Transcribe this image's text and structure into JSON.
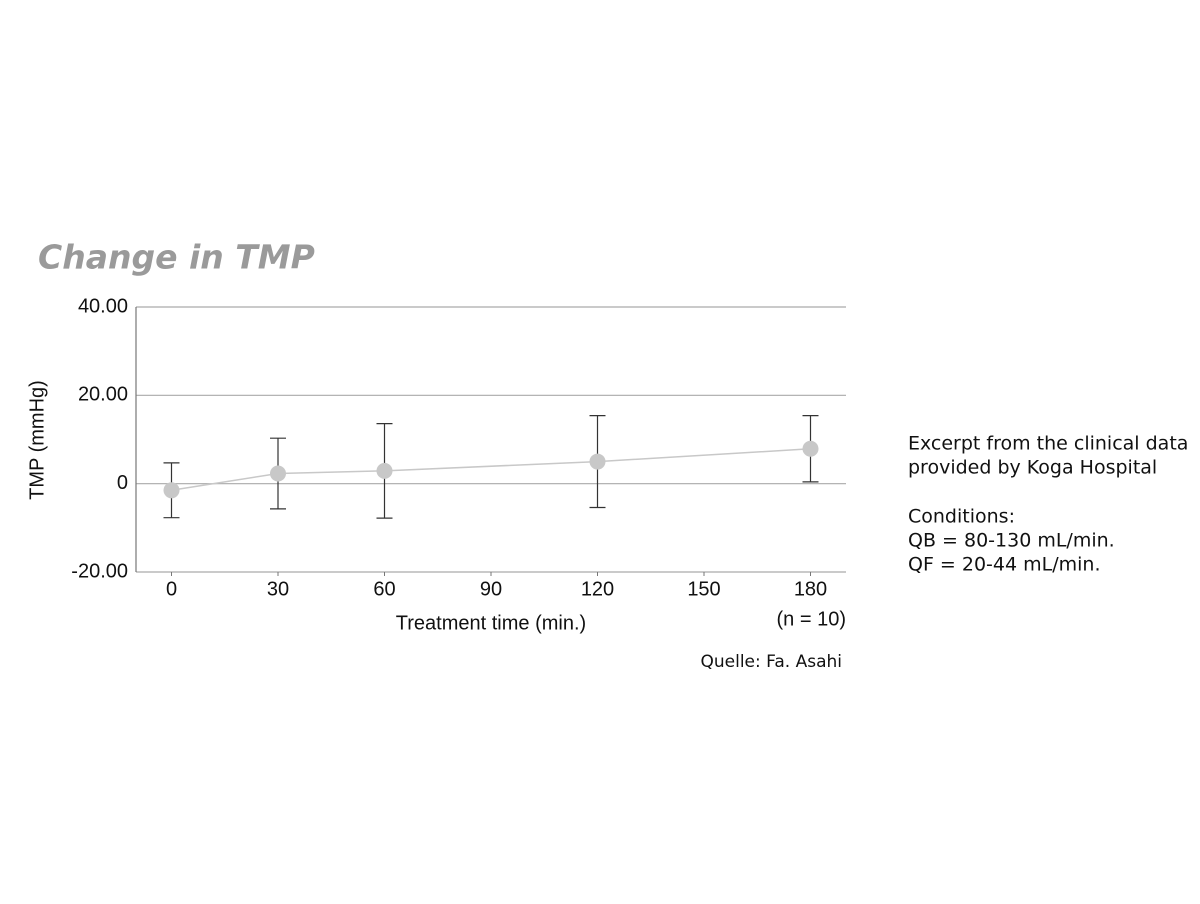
{
  "chart_data": {
    "type": "line",
    "title": "Change in TMP",
    "y_label": "TMP (mmHg)",
    "x_label": "Treatment time (min.)",
    "annotation": "(n = 10)",
    "source": "Quelle: Fa. Asahi",
    "notes": [
      "Excerpt from the clinical data",
      "provided by Koga Hospital",
      "Conditions:",
      "QB = 80-130 mL/min.",
      "QF = 20-44 mL/min."
    ],
    "x": [
      0,
      30,
      60,
      120,
      180
    ],
    "values": [
      -1.5,
      2.3,
      2.9,
      5.0,
      7.9
    ],
    "errors": [
      6.2,
      8.0,
      10.7,
      10.4,
      7.5
    ],
    "color": "#c8c8c8",
    "xlim": [
      -10,
      190
    ],
    "xticks": [
      0,
      30,
      60,
      90,
      120,
      150,
      180
    ],
    "ylim": [
      -20,
      40
    ],
    "yticks": [
      {
        "value": 40,
        "label": "40.00"
      },
      {
        "value": 20,
        "label": "20.00"
      },
      0,
      {
        "value": -20,
        "label": "-20.00"
      }
    ],
    "grid": true
  }
}
